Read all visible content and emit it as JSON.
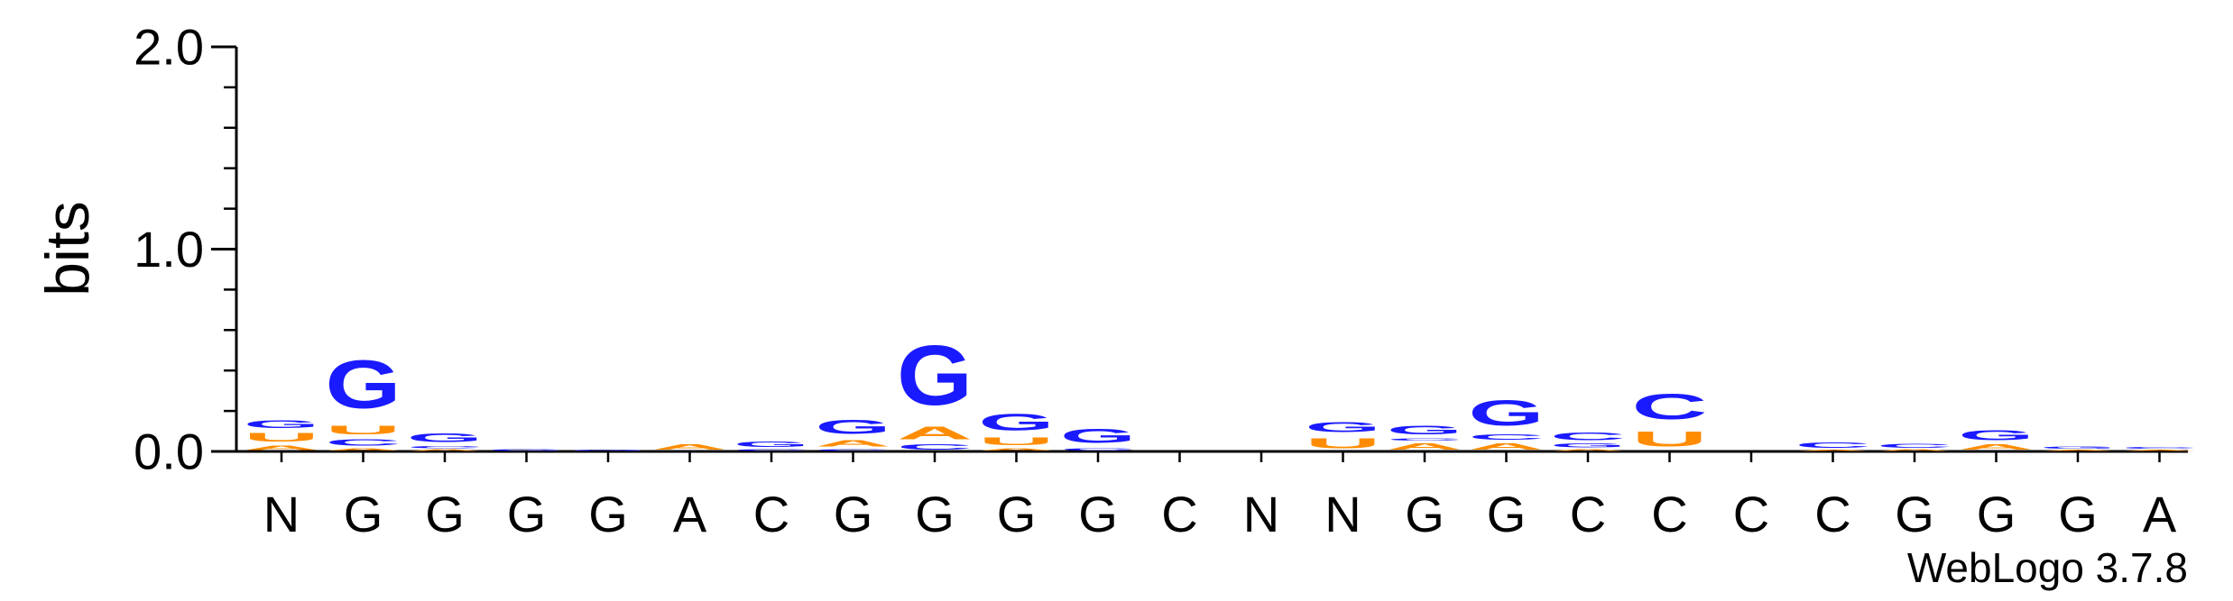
{
  "chart_data": {
    "type": "sequence-logo",
    "ylabel": "bits",
    "ylim": [
      0,
      2
    ],
    "yticks": [
      "0.0",
      "1.0",
      "2.0"
    ],
    "credit": "WebLogo 3.7.8",
    "colors": {
      "G": "#1a1aff",
      "C": "#1a1aff",
      "A": "#ff8c00",
      "U": "#ff8c00"
    },
    "positions": [
      {
        "label": "N",
        "stack": [
          {
            "letter": "A",
            "bits": 0.035
          },
          {
            "letter": "U",
            "bits": 0.07
          },
          {
            "letter": "G",
            "bits": 0.06
          }
        ]
      },
      {
        "label": "G",
        "stack": [
          {
            "letter": "A",
            "bits": 0.02
          },
          {
            "letter": "C",
            "bits": 0.05
          },
          {
            "letter": "U",
            "bits": 0.07
          },
          {
            "letter": "G",
            "bits": 0.38
          }
        ]
      },
      {
        "label": "G",
        "stack": [
          {
            "letter": "A",
            "bits": 0.012
          },
          {
            "letter": "C",
            "bits": 0.02
          },
          {
            "letter": "G",
            "bits": 0.07
          }
        ]
      },
      {
        "label": "G",
        "stack": [
          {
            "letter": "G",
            "bits": 0.012
          }
        ]
      },
      {
        "label": "G",
        "stack": [
          {
            "letter": "G",
            "bits": 0.01
          }
        ]
      },
      {
        "label": "A",
        "stack": [
          {
            "letter": "A",
            "bits": 0.04
          }
        ]
      },
      {
        "label": "C",
        "stack": [
          {
            "letter": "C",
            "bits": 0.015
          },
          {
            "letter": "G",
            "bits": 0.04
          }
        ]
      },
      {
        "label": "G",
        "stack": [
          {
            "letter": "C",
            "bits": 0.015
          },
          {
            "letter": "A",
            "bits": 0.05
          },
          {
            "letter": "G",
            "bits": 0.11
          }
        ]
      },
      {
        "label": "G",
        "stack": [
          {
            "letter": "C",
            "bits": 0.04
          },
          {
            "letter": "A",
            "bits": 0.1
          },
          {
            "letter": "G",
            "bits": 0.47
          }
        ]
      },
      {
        "label": "G",
        "stack": [
          {
            "letter": "A",
            "bits": 0.02
          },
          {
            "letter": "U",
            "bits": 0.06
          },
          {
            "letter": "G",
            "bits": 0.13
          }
        ]
      },
      {
        "label": "G",
        "stack": [
          {
            "letter": "C",
            "bits": 0.02
          },
          {
            "letter": "G",
            "bits": 0.11
          }
        ]
      },
      {
        "label": "C",
        "stack": []
      },
      {
        "label": "N",
        "stack": []
      },
      {
        "label": "N",
        "stack": [
          {
            "letter": "U",
            "bits": 0.08
          },
          {
            "letter": "G",
            "bits": 0.08
          }
        ]
      },
      {
        "label": "G",
        "stack": [
          {
            "letter": "A",
            "bits": 0.05
          },
          {
            "letter": "C",
            "bits": 0.02
          },
          {
            "letter": "G",
            "bits": 0.07
          }
        ]
      },
      {
        "label": "G",
        "stack": [
          {
            "letter": "A",
            "bits": 0.05
          },
          {
            "letter": "C",
            "bits": 0.04
          },
          {
            "letter": "G",
            "bits": 0.2
          }
        ]
      },
      {
        "label": "C",
        "stack": [
          {
            "letter": "A",
            "bits": 0.015
          },
          {
            "letter": "G",
            "bits": 0.03
          },
          {
            "letter": "C",
            "bits": 0.06
          }
        ]
      },
      {
        "label": "C",
        "stack": [
          {
            "letter": "U",
            "bits": 0.12
          },
          {
            "letter": "C",
            "bits": 0.2
          }
        ]
      },
      {
        "label": "C",
        "stack": []
      },
      {
        "label": "C",
        "stack": [
          {
            "letter": "A",
            "bits": 0.01
          },
          {
            "letter": "C",
            "bits": 0.04
          }
        ]
      },
      {
        "label": "G",
        "stack": [
          {
            "letter": "A",
            "bits": 0.012
          },
          {
            "letter": "C",
            "bits": 0.03
          }
        ]
      },
      {
        "label": "G",
        "stack": [
          {
            "letter": "A",
            "bits": 0.04
          },
          {
            "letter": "G",
            "bits": 0.08
          }
        ]
      },
      {
        "label": "G",
        "stack": [
          {
            "letter": "A",
            "bits": 0.01
          },
          {
            "letter": "G",
            "bits": 0.02
          }
        ]
      },
      {
        "label": "A",
        "stack": [
          {
            "letter": "A",
            "bits": 0.01
          },
          {
            "letter": "C",
            "bits": 0.015
          }
        ]
      }
    ]
  }
}
